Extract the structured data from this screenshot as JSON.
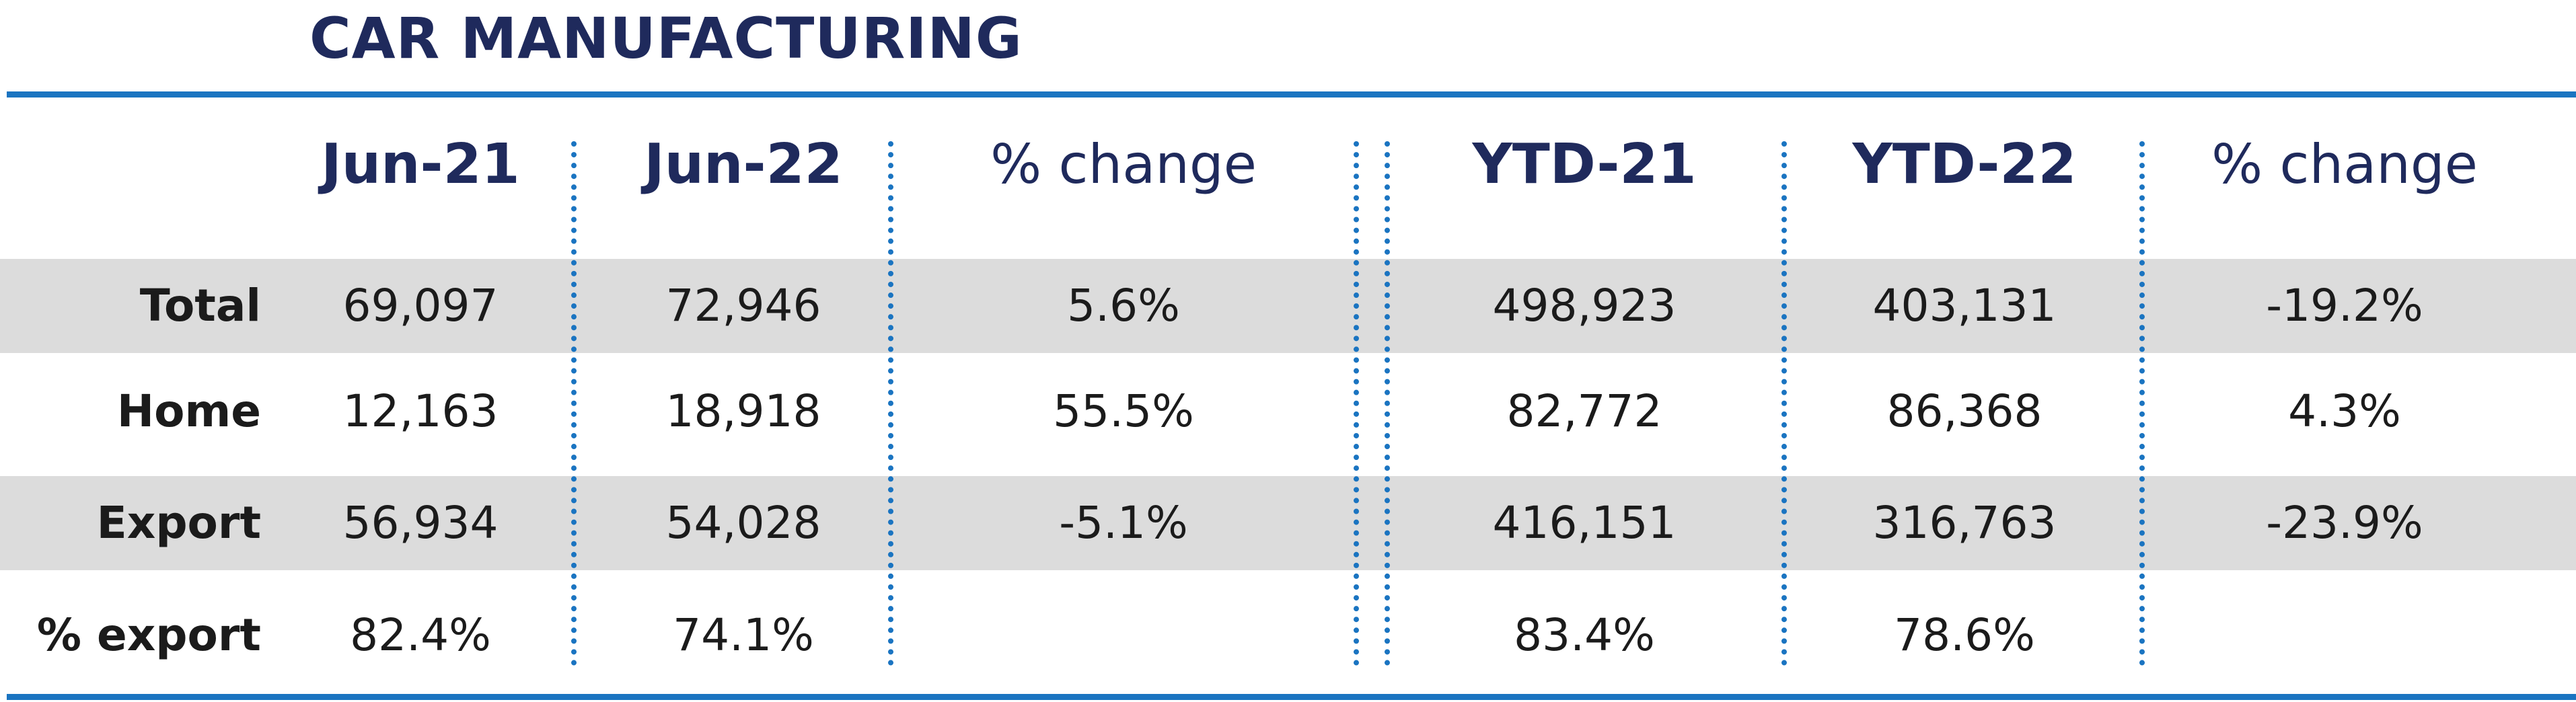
{
  "title": "CAR MANUFACTURING",
  "columns": [
    "Jun-21",
    "Jun-22",
    "% change",
    "YTD-21",
    "YTD-22",
    "% change"
  ],
  "rows": [
    {
      "label": "Total",
      "values": [
        "69,097",
        "72,946",
        "5.6%",
        "498,923",
        "403,131",
        "-19.2%"
      ]
    },
    {
      "label": "Home",
      "values": [
        "12,163",
        "18,918",
        "55.5%",
        "82,772",
        "86,368",
        "4.3%"
      ]
    },
    {
      "label": "Export",
      "values": [
        "56,934",
        "54,028",
        "-5.1%",
        "416,151",
        "316,763",
        "-23.9%"
      ]
    },
    {
      "label": "% export",
      "values": [
        "82.4%",
        "74.1%",
        "",
        "83.4%",
        "78.6%",
        ""
      ]
    }
  ],
  "colors": {
    "heading": "#1f2a5c",
    "accent": "#1a74c1",
    "row_shade": "#dcdcdc",
    "text": "#1b1b1b"
  }
}
